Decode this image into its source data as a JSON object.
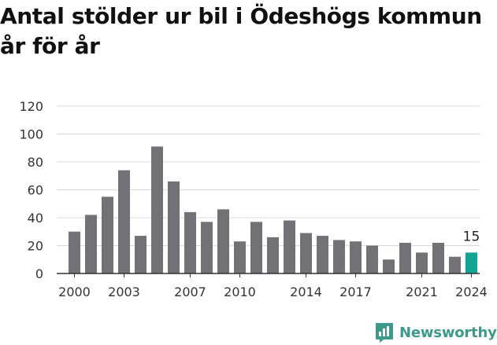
{
  "title": "Antal stölder ur bil i Ödeshögs kommun år för år",
  "brand": {
    "name": "Newsworthy",
    "icon": "newsworthy-logo-icon",
    "color": "#3d9a8a"
  },
  "colors": {
    "bar": "#727176",
    "highlight": "#12a493",
    "grid": "#d9d9d9",
    "axis": "#333333"
  },
  "chart_data": {
    "type": "bar",
    "title": "Antal stölder ur bil i Ödeshögs kommun år för år",
    "xlabel": "",
    "ylabel": "",
    "categories": [
      "2000",
      "2001",
      "2002",
      "2003",
      "2004",
      "2005",
      "2006",
      "2007",
      "2008",
      "2009",
      "2010",
      "2011",
      "2012",
      "2013",
      "2014",
      "2015",
      "2016",
      "2017",
      "2018",
      "2019",
      "2020",
      "2021",
      "2022",
      "2023",
      "2024"
    ],
    "values": [
      30,
      42,
      55,
      74,
      27,
      91,
      66,
      44,
      37,
      46,
      23,
      37,
      26,
      38,
      29,
      27,
      24,
      23,
      20,
      10,
      22,
      15,
      22,
      12,
      15
    ],
    "x_tick_labels": [
      "2000",
      "2003",
      "2007",
      "2010",
      "2014",
      "2017",
      "2021",
      "2024"
    ],
    "y_ticks": [
      0,
      20,
      40,
      60,
      80,
      100,
      120
    ],
    "ylim": [
      0,
      120
    ],
    "grid": true,
    "highlight": {
      "category": "2024",
      "label": "15"
    }
  }
}
